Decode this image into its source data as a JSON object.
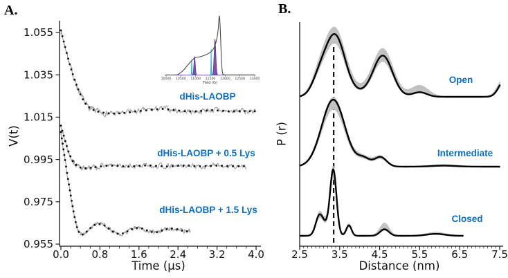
{
  "colors": {
    "accent_blue": "#0d6ebf",
    "raw_gray": "#a3a3a3",
    "fit_black": "#121212",
    "band_gray": "#c2c2c2",
    "curve_black": "#000000",
    "axis_black": "#1a1a1a",
    "cyan": "#49cfe9",
    "cyan_dark": "#17a8cc",
    "purple": "#7a52a8",
    "purple_dark": "#54357f",
    "inset_line": "#4a4a4a"
  },
  "chart_data": [
    {
      "type": "line",
      "panel_label": "A.",
      "xlabel": "Time (μs)",
      "ylabel": "V(t)",
      "xlim": [
        0.0,
        4.0
      ],
      "ylim": [
        0.954,
        1.061
      ],
      "x_ticks": [
        "0.0",
        "0.8",
        "1.6",
        "2.4",
        "3.2",
        "4.0"
      ],
      "x_tick_vals": [
        0.0,
        0.8,
        1.6,
        2.4,
        3.2,
        4.0
      ],
      "x_minor_step": 0.2,
      "y_ticks": [
        "0.955",
        "0.975",
        "0.995",
        "1.015",
        "1.035",
        "1.055"
      ],
      "y_tick_vals": [
        0.955,
        0.975,
        0.995,
        1.015,
        1.035,
        1.055
      ],
      "grid": false,
      "series": [
        {
          "name": "dHis-LAOBP",
          "label": "dHis-LAOBP",
          "noise": 0.0012,
          "seed": 7,
          "fit": [
            [
              0,
              1.056
            ],
            [
              0.1,
              1.047
            ],
            [
              0.2,
              1.0385
            ],
            [
              0.3,
              1.0315
            ],
            [
              0.4,
              1.0258
            ],
            [
              0.5,
              1.0215
            ],
            [
              0.6,
              1.0193
            ],
            [
              0.7,
              1.0181
            ],
            [
              0.8,
              1.0174
            ],
            [
              0.95,
              1.0169
            ],
            [
              1.1,
              1.0167
            ],
            [
              1.3,
              1.017
            ],
            [
              1.5,
              1.0176
            ],
            [
              1.7,
              1.0181
            ],
            [
              1.9,
              1.0186
            ],
            [
              2.1,
              1.0189
            ],
            [
              2.3,
              1.0184
            ],
            [
              2.5,
              1.0179
            ],
            [
              2.7,
              1.0177
            ],
            [
              2.9,
              1.018
            ],
            [
              3.1,
              1.0183
            ],
            [
              3.3,
              1.018
            ],
            [
              3.5,
              1.0177
            ],
            [
              3.7,
              1.0179
            ],
            [
              3.9,
              1.0178
            ],
            [
              3.98,
              1.0178
            ]
          ]
        },
        {
          "name": "dHis-LAOBP + 0.5 Lys",
          "label": "dHis-LAOBP + 0.5 Lys",
          "noise": 0.001,
          "seed": 13,
          "fit": [
            [
              0,
              1.011
            ],
            [
              0.08,
              1.0045
            ],
            [
              0.16,
              0.9985
            ],
            [
              0.24,
              0.9945
            ],
            [
              0.32,
              0.9922
            ],
            [
              0.4,
              0.9912
            ],
            [
              0.5,
              0.9909
            ],
            [
              0.65,
              0.9912
            ],
            [
              0.8,
              0.9917
            ],
            [
              1.0,
              0.9921
            ],
            [
              1.2,
              0.9919
            ],
            [
              1.4,
              0.9917
            ],
            [
              1.6,
              0.992
            ],
            [
              1.8,
              0.9922
            ],
            [
              2.0,
              0.9919
            ],
            [
              2.2,
              0.9917
            ],
            [
              2.4,
              0.992
            ],
            [
              2.6,
              0.9921
            ],
            [
              2.8,
              0.9918
            ],
            [
              3.0,
              0.9919
            ],
            [
              3.2,
              0.9921
            ],
            [
              3.4,
              0.9919
            ],
            [
              3.6,
              0.9918
            ],
            [
              3.8,
              0.9919
            ]
          ]
        },
        {
          "name": "dHis-LAOBP + 1.5 Lys",
          "label": "dHis-LAOBP + 1.5 Lys",
          "noise": 0.0008,
          "seed": 29,
          "fit": [
            [
              0,
              1.008
            ],
            [
              0.08,
              0.9955
            ],
            [
              0.16,
              0.9838
            ],
            [
              0.22,
              0.9755
            ],
            [
              0.28,
              0.9678
            ],
            [
              0.33,
              0.963
            ],
            [
              0.38,
              0.9603
            ],
            [
              0.43,
              0.9595
            ],
            [
              0.5,
              0.9603
            ],
            [
              0.6,
              0.9625
            ],
            [
              0.7,
              0.9641
            ],
            [
              0.8,
              0.9645
            ],
            [
              0.9,
              0.9637
            ],
            [
              1.0,
              0.962
            ],
            [
              1.1,
              0.9605
            ],
            [
              1.2,
              0.9598
            ],
            [
              1.3,
              0.9603
            ],
            [
              1.4,
              0.9615
            ],
            [
              1.5,
              0.9624
            ],
            [
              1.6,
              0.9627
            ],
            [
              1.7,
              0.9621
            ],
            [
              1.8,
              0.9612
            ],
            [
              1.9,
              0.9606
            ],
            [
              2.0,
              0.9608
            ],
            [
              2.1,
              0.9616
            ],
            [
              2.2,
              0.9622
            ],
            [
              2.3,
              0.9624
            ],
            [
              2.4,
              0.9619
            ],
            [
              2.5,
              0.9613
            ],
            [
              2.6,
              0.9611
            ],
            [
              2.65,
              0.9612
            ]
          ]
        }
      ],
      "inset": {
        "type": "area",
        "xlabel": "Field (G)",
        "xlim": [
          10000,
          13000
        ],
        "x_ticks": [
          "10000",
          "10500",
          "11000",
          "11500",
          "12000",
          "12500",
          "13000"
        ],
        "x_tick_vals": [
          10000,
          10500,
          11000,
          11500,
          12000,
          12500,
          13000
        ],
        "curve": [
          [
            10000,
            0.002
          ],
          [
            10300,
            0.002
          ],
          [
            10400,
            0.01
          ],
          [
            10500,
            0.045
          ],
          [
            10600,
            0.09
          ],
          [
            10700,
            0.15
          ],
          [
            10800,
            0.21
          ],
          [
            10900,
            0.265
          ],
          [
            10975,
            0.295
          ],
          [
            11050,
            0.305
          ],
          [
            11150,
            0.315
          ],
          [
            11250,
            0.33
          ],
          [
            11350,
            0.35
          ],
          [
            11450,
            0.375
          ],
          [
            11550,
            0.415
          ],
          [
            11620,
            0.47
          ],
          [
            11680,
            0.55
          ],
          [
            11730,
            0.66
          ],
          [
            11770,
            0.82
          ],
          [
            11795,
            1.0
          ],
          [
            11815,
            0.97
          ],
          [
            11840,
            0.72
          ],
          [
            11865,
            0.38
          ],
          [
            11890,
            0.13
          ],
          [
            11915,
            0.03
          ],
          [
            11950,
            0.005
          ],
          [
            12000,
            0.002
          ],
          [
            13000,
            0.002
          ]
        ],
        "markers": [
          {
            "c": 10865,
            "a": 0.26,
            "s": 8,
            "color": "cyan"
          },
          {
            "c": 10965,
            "a": 0.32,
            "s": 24,
            "color": "purple"
          },
          {
            "c": 11525,
            "a": 0.45,
            "s": 8,
            "color": "cyan"
          },
          {
            "c": 11655,
            "a": 0.62,
            "s": 30,
            "color": "purple"
          }
        ]
      }
    },
    {
      "type": "line",
      "panel_label": "B.",
      "xlabel": "Distance (nm)",
      "ylabel": "P (r)",
      "xlim": [
        2.5,
        7.5
      ],
      "x_ticks": [
        "2.5",
        "3.5",
        "4.5",
        "5.5",
        "6.5",
        "7.5"
      ],
      "x_tick_vals": [
        2.5,
        3.5,
        4.5,
        5.5,
        6.5,
        7.5
      ],
      "x_minor_step": 0.1,
      "dashed_line_x": 3.35,
      "grid": false,
      "traces": [
        {
          "label": "Open",
          "x_start": 2.5,
          "x_end": 7.52,
          "peaks": [
            {
              "c": 2.98,
              "a": 0.22,
              "s": 0.18
            },
            {
              "c": 3.38,
              "a": 0.93,
              "s": 0.25
            },
            {
              "c": 4.0,
              "a": 0.05,
              "s": 0.3
            },
            {
              "c": 4.58,
              "a": 0.62,
              "s": 0.24
            },
            {
              "c": 5.5,
              "a": 0.07,
              "s": 0.18
            },
            {
              "c": 7.62,
              "a": 0.25,
              "s": 0.14
            }
          ],
          "band": [
            {
              "c": 2.98,
              "a": 0.24,
              "s": 0.19
            },
            {
              "c": 3.38,
              "a": 1.02,
              "s": 0.27
            },
            {
              "c": 4.0,
              "a": 0.07,
              "s": 0.32
            },
            {
              "c": 4.58,
              "a": 0.72,
              "s": 0.26
            },
            {
              "c": 5.5,
              "a": 0.17,
              "s": 0.22
            },
            {
              "c": 7.62,
              "a": 0.3,
              "s": 0.16
            }
          ]
        },
        {
          "label": "Intermediate",
          "x_start": 2.5,
          "x_end": 7.52,
          "peaks": [
            {
              "c": 3.34,
              "a": 1.02,
              "s": 0.29
            },
            {
              "c": 4.1,
              "a": 0.12,
              "s": 0.16
            },
            {
              "c": 4.52,
              "a": 0.145,
              "s": 0.15
            },
            {
              "c": 6.1,
              "a": 0.015,
              "s": 0.3
            }
          ],
          "band": [
            {
              "c": 3.34,
              "a": 1.05,
              "s": 0.3
            },
            {
              "c": 4.1,
              "a": 0.13,
              "s": 0.17
            },
            {
              "c": 4.52,
              "a": 0.16,
              "s": 0.16
            },
            {
              "c": 6.1,
              "a": 0.03,
              "s": 0.35
            }
          ]
        },
        {
          "label": "Closed",
          "x_start": 2.5,
          "x_end": 6.6,
          "peaks": [
            {
              "c": 2.99,
              "a": 0.3,
              "s": 0.09
            },
            {
              "c": 3.15,
              "a": 0.12,
              "s": 0.09
            },
            {
              "c": 3.34,
              "a": 1.0,
              "s": 0.08
            },
            {
              "c": 3.73,
              "a": 0.16,
              "s": 0.065
            },
            {
              "c": 4.62,
              "a": 0.1,
              "s": 0.11
            },
            {
              "c": 5.9,
              "a": 0.03,
              "s": 0.22
            }
          ],
          "band": [
            {
              "c": 2.99,
              "a": 0.34,
              "s": 0.095
            },
            {
              "c": 3.15,
              "a": 0.13,
              "s": 0.09
            },
            {
              "c": 3.34,
              "a": 1.05,
              "s": 0.085
            },
            {
              "c": 3.73,
              "a": 0.18,
              "s": 0.07
            },
            {
              "c": 4.62,
              "a": 0.19,
              "s": 0.12
            },
            {
              "c": 5.9,
              "a": 0.05,
              "s": 0.25
            }
          ]
        }
      ]
    }
  ]
}
